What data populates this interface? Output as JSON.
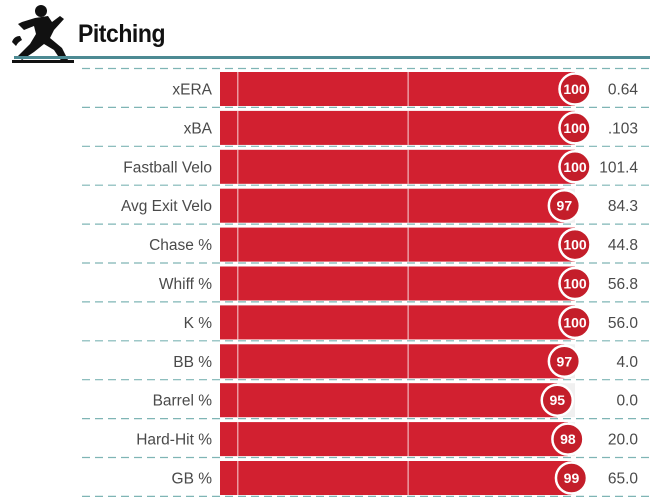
{
  "header": {
    "title": "Pitching"
  },
  "colors": {
    "bar": "#d22030",
    "circle": "#c41e2a",
    "rule": "#4d8a93",
    "track": "#f0f0f0",
    "dash": "#7fb5b5"
  },
  "chart_data": {
    "type": "bar",
    "orientation": "horizontal",
    "xlim": [
      0,
      100
    ],
    "categories": [
      "xERA",
      "xBA",
      "Fastball Velo",
      "Avg Exit Velo",
      "Chase %",
      "Whiff %",
      "K %",
      "BB %",
      "Barrel %",
      "Hard-Hit %",
      "GB %"
    ],
    "percentiles": [
      100,
      100,
      100,
      97,
      100,
      100,
      100,
      97,
      95,
      98,
      99
    ],
    "stat_values": [
      "0.64",
      ".103",
      "101.4",
      "84.3",
      "44.8",
      "56.8",
      "56.0",
      "4.0",
      "0.0",
      "20.0",
      "65.0"
    ]
  }
}
